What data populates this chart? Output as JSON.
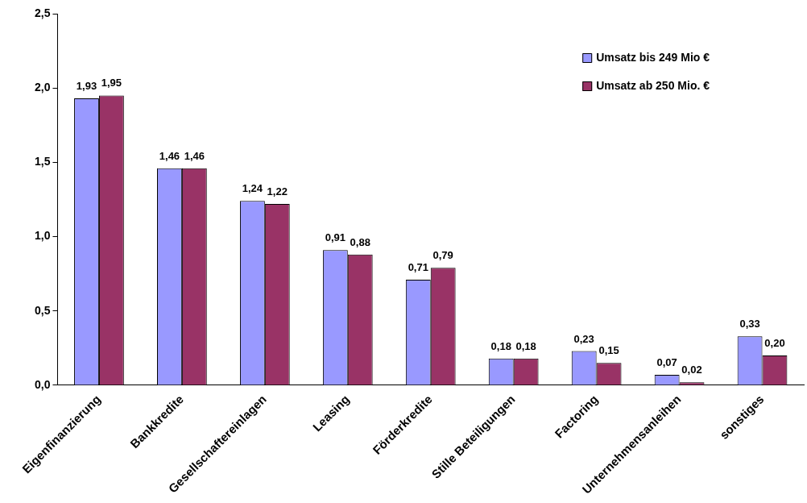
{
  "chart_data": {
    "type": "bar",
    "categories": [
      "Eigenfinanzierung",
      "Bankkredite",
      "Gesellschaftereinlagen",
      "Leasing",
      "Förderkredite",
      "Stille Beteiligungen",
      "Factoring",
      "Unternehmensanleihen",
      "sonstiges"
    ],
    "series": [
      {
        "name": "Umsatz bis 249 Mio €",
        "color": "#9999ff",
        "values": [
          1.93,
          1.46,
          1.24,
          0.91,
          0.71,
          0.18,
          0.23,
          0.07,
          0.33
        ],
        "value_labels": [
          "1,93",
          "1,46",
          "1,24",
          "0,91",
          "0,71",
          "0,18",
          "0,23",
          "0,07",
          "0,33"
        ]
      },
      {
        "name": "Umsatz ab 250 Mio. €",
        "color": "#993366",
        "values": [
          1.95,
          1.46,
          1.22,
          0.88,
          0.79,
          0.18,
          0.15,
          0.02,
          0.2
        ],
        "value_labels": [
          "1,95",
          "1,46",
          "1,22",
          "0,88",
          "0,79",
          "0,18",
          "0,15",
          "0,02",
          "0,20"
        ]
      }
    ],
    "ylim": [
      0,
      2.5
    ],
    "yticks": [
      {
        "value": 0,
        "label": "0,0"
      },
      {
        "value": 0.5,
        "label": "0,5"
      },
      {
        "value": 1,
        "label": "1,0"
      },
      {
        "value": 1.5,
        "label": "1,5"
      },
      {
        "value": 2,
        "label": "2,0"
      },
      {
        "value": 2.5,
        "label": "2,5"
      }
    ],
    "grid": false,
    "legend": "top right"
  }
}
